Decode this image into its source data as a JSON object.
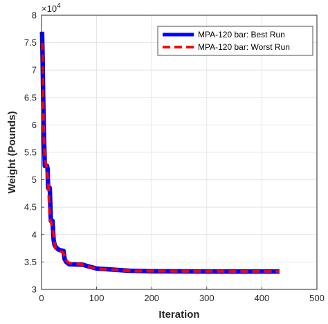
{
  "chart_data": {
    "type": "line",
    "xlabel": "Iteration",
    "ylabel": "Weight (Pounds)",
    "y_multiplier_label": "×10",
    "y_multiplier_exponent": "4",
    "xlim": [
      0,
      500
    ],
    "ylim": [
      30000,
      80000
    ],
    "x_ticks": [
      0,
      100,
      200,
      300,
      400,
      500
    ],
    "x_tick_labels": [
      "0",
      "100",
      "200",
      "300",
      "400",
      "500"
    ],
    "y_ticks": [
      30000,
      35000,
      40000,
      45000,
      50000,
      55000,
      60000,
      65000,
      70000,
      75000,
      80000
    ],
    "y_tick_labels": [
      "3",
      "3.5",
      "4",
      "4.5",
      "5",
      "5.5",
      "6",
      "6.5",
      "7",
      "7.5",
      "8"
    ],
    "grid": true,
    "legend_position": "top-right",
    "series": [
      {
        "name": "MPA-120 bar: Best Run",
        "color": "#0000ff",
        "style": "solid",
        "points": [
          [
            1,
            77000
          ],
          [
            2,
            72000
          ],
          [
            3,
            65000
          ],
          [
            4,
            60000
          ],
          [
            5,
            56000
          ],
          [
            6,
            52500
          ],
          [
            10,
            52500
          ],
          [
            11,
            52000
          ],
          [
            12,
            48500
          ],
          [
            15,
            48500
          ],
          [
            17,
            42500
          ],
          [
            20,
            42500
          ],
          [
            22,
            39000
          ],
          [
            24,
            38000
          ],
          [
            28,
            37500
          ],
          [
            32,
            37200
          ],
          [
            40,
            37000
          ],
          [
            42,
            35500
          ],
          [
            45,
            35000
          ],
          [
            50,
            34600
          ],
          [
            75,
            34500
          ],
          [
            85,
            34200
          ],
          [
            100,
            33800
          ],
          [
            130,
            33600
          ],
          [
            160,
            33400
          ],
          [
            200,
            33300
          ],
          [
            300,
            33250
          ],
          [
            432,
            33250
          ]
        ]
      },
      {
        "name": "MPA-120 bar: Worst Run",
        "color": "#ff0000",
        "style": "dashed",
        "points": [
          [
            1,
            75000
          ],
          [
            2,
            71000
          ],
          [
            3,
            64000
          ],
          [
            4,
            58000
          ],
          [
            6,
            54000
          ],
          [
            8,
            53000
          ],
          [
            12,
            50000
          ],
          [
            15,
            43000
          ],
          [
            18,
            42000
          ],
          [
            22,
            40000
          ],
          [
            25,
            37500
          ],
          [
            30,
            37300
          ],
          [
            40,
            36600
          ],
          [
            44,
            35300
          ],
          [
            50,
            34800
          ],
          [
            75,
            34500
          ],
          [
            90,
            34000
          ],
          [
            110,
            33700
          ],
          [
            140,
            33500
          ],
          [
            165,
            33350
          ],
          [
            250,
            33300
          ],
          [
            432,
            33280
          ]
        ]
      }
    ]
  }
}
